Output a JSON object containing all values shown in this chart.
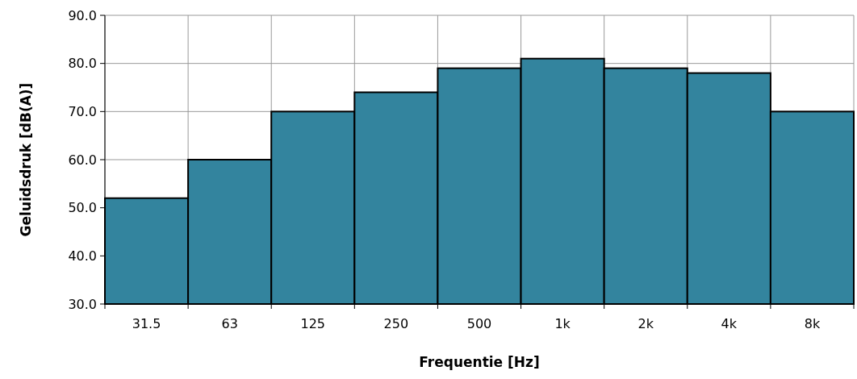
{
  "chart_data": {
    "type": "bar",
    "xlabel": "Frequentie [Hz]",
    "ylabel": "Geluidsdruk [dB(A)]",
    "categories": [
      "31.5",
      "63",
      "125",
      "250",
      "500",
      "1k",
      "2k",
      "4k",
      "8k"
    ],
    "values": [
      52,
      60,
      70,
      74,
      79,
      81,
      79,
      78,
      70
    ],
    "color": "#33849e",
    "ylim": [
      30,
      90
    ],
    "yticks": [
      {
        "value": 30,
        "label": "30.0"
      },
      {
        "value": 40,
        "label": "40.0"
      },
      {
        "value": 50,
        "label": "50.0"
      },
      {
        "value": 60,
        "label": "60.0"
      },
      {
        "value": 70,
        "label": "70.0"
      },
      {
        "value": 80,
        "label": "80.0"
      },
      {
        "value": 90,
        "label": "90.0"
      }
    ],
    "grid": true
  }
}
